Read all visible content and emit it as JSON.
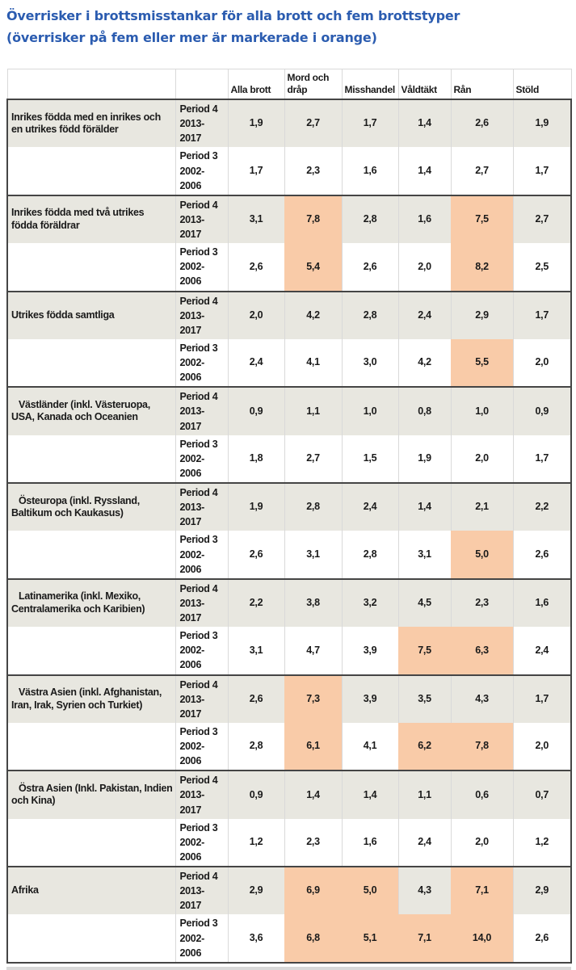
{
  "title": {
    "line1": "Överrisker i brottsmisstankar för alla brott och fem brottstyper",
    "line2": "(överrisker på fem eller mer är markerade i orange)"
  },
  "colors": {
    "title_blue": "#2B5CB0",
    "highlight_orange": "#F9CBA8",
    "row_shade_gray": "#E8E7E0",
    "group_border_dark": "#454545",
    "grid_border_light": "#D9D9D9",
    "text_ink": "#1A1A1A",
    "bottom_strip_gray": "#D9D9D9"
  },
  "table": {
    "column_headers": [
      "Alla brott",
      "Mord och dråp",
      "Misshandel",
      "Våldtäkt",
      "Rån",
      "Stöld"
    ],
    "highlight_threshold": 5,
    "groups": [
      {
        "label": "Inrikes födda med en inrikes och en utrikes född förälder",
        "indent": false,
        "rows": [
          {
            "period": "Period 4",
            "years": "2013-2017",
            "values": [
              "1,9",
              "2,7",
              "1,7",
              "1,4",
              "2,6",
              "1,9"
            ]
          },
          {
            "period": "Period 3",
            "years": "2002-2006",
            "values": [
              "1,7",
              "2,3",
              "1,6",
              "1,4",
              "2,7",
              "1,7"
            ]
          }
        ]
      },
      {
        "label": "Inrikes födda med två utrikes födda föräldrar",
        "indent": false,
        "rows": [
          {
            "period": "Period 4",
            "years": "2013-2017",
            "values": [
              "3,1",
              "7,8",
              "2,8",
              "1,6",
              "7,5",
              "2,7"
            ]
          },
          {
            "period": "Period 3",
            "years": "2002-2006",
            "values": [
              "2,6",
              "5,4",
              "2,6",
              "2,0",
              "8,2",
              "2,5"
            ]
          }
        ]
      },
      {
        "label": "Utrikes födda samtliga",
        "indent": false,
        "rows": [
          {
            "period": "Period 4",
            "years": "2013-2017",
            "values": [
              "2,0",
              "4,2",
              "2,8",
              "2,4",
              "2,9",
              "1,7"
            ]
          },
          {
            "period": "Period 3",
            "years": "2002-2006",
            "values": [
              "2,4",
              "4,1",
              "3,0",
              "4,2",
              "5,5",
              "2,0"
            ]
          }
        ]
      },
      {
        "label": "Västländer (inkl. Västeruopa, USA, Kanada och Oceanien",
        "indent": true,
        "rows": [
          {
            "period": "Period 4",
            "years": "2013-2017",
            "values": [
              "0,9",
              "1,1",
              "1,0",
              "0,8",
              "1,0",
              "0,9"
            ]
          },
          {
            "period": "Period 3",
            "years": "2002-2006",
            "values": [
              "1,8",
              "2,7",
              "1,5",
              "1,9",
              "2,0",
              "1,7"
            ]
          }
        ]
      },
      {
        "label": "Östeuropa (inkl. Ryssland, Baltikum och Kaukasus)",
        "indent": true,
        "rows": [
          {
            "period": "Period 4",
            "years": "2013-2017",
            "values": [
              "1,9",
              "2,8",
              "2,4",
              "1,4",
              "2,1",
              "2,2"
            ]
          },
          {
            "period": "Period 3",
            "years": "2002-2006",
            "values": [
              "2,6",
              "3,1",
              "2,8",
              "3,1",
              "5,0",
              "2,6"
            ]
          }
        ]
      },
      {
        "label": "Latinamerika (inkl. Mexiko, Centralamerika och Karibien)",
        "indent": true,
        "rows": [
          {
            "period": "Period 4",
            "years": "2013-2017",
            "values": [
              "2,2",
              "3,8",
              "3,2",
              "4,5",
              "2,3",
              "1,6"
            ]
          },
          {
            "period": "Period 3",
            "years": "2002-2006",
            "values": [
              "3,1",
              "4,7",
              "3,9",
              "7,5",
              "6,3",
              "2,4"
            ]
          }
        ]
      },
      {
        "label": "Västra Asien (inkl. Afghanistan, Iran, Irak, Syrien och Turkiet)",
        "indent": true,
        "rows": [
          {
            "period": "Period 4",
            "years": "2013-2017",
            "values": [
              "2,6",
              "7,3",
              "3,9",
              "3,5",
              "4,3",
              "1,7"
            ]
          },
          {
            "period": "Period 3",
            "years": "2002-2006",
            "values": [
              "2,8",
              "6,1",
              "4,1",
              "6,2",
              "7,8",
              "2,0"
            ]
          }
        ]
      },
      {
        "label": "Östra Asien (Inkl. Pakistan, Indien och Kina)",
        "indent": true,
        "rows": [
          {
            "period": "Period 4",
            "years": "2013-2017",
            "values": [
              "0,9",
              "1,4",
              "1,4",
              "1,1",
              "0,6",
              "0,7"
            ]
          },
          {
            "period": "Period 3",
            "years": "2002-2006",
            "values": [
              "1,2",
              "2,3",
              "1,6",
              "2,4",
              "2,0",
              "1,2"
            ]
          }
        ]
      },
      {
        "label": "Afrika",
        "indent": false,
        "rows": [
          {
            "period": "Period 4",
            "years": "2013-2017",
            "values": [
              "2,9",
              "6,9",
              "5,0",
              "4,3",
              "7,1",
              "2,9"
            ]
          },
          {
            "period": "Period 3",
            "years": "2002-2006",
            "values": [
              "3,6",
              "6,8",
              "5,1",
              "7,1",
              "14,0",
              "2,6"
            ]
          }
        ]
      }
    ]
  },
  "chart_data": {
    "type": "table",
    "title": "Överrisker i brottsmisstankar för alla brott och fem brottstyper (överrisker på fem eller mer är markerade i orange)",
    "columns": [
      "Alla brott",
      "Mord och dråp",
      "Misshandel",
      "Våldtäkt",
      "Rån",
      "Stöld"
    ],
    "highlight_rule": "cell value >= 5 is highlighted orange",
    "rows": [
      {
        "group": "Inrikes födda med en inrikes och en utrikes född förälder",
        "period": "Period 4 2013-2017",
        "values": [
          1.9,
          2.7,
          1.7,
          1.4,
          2.6,
          1.9
        ]
      },
      {
        "group": "Inrikes födda med en inrikes och en utrikes född förälder",
        "period": "Period 3 2002-2006",
        "values": [
          1.7,
          2.3,
          1.6,
          1.4,
          2.7,
          1.7
        ]
      },
      {
        "group": "Inrikes födda med två utrikes födda föräldrar",
        "period": "Period 4 2013-2017",
        "values": [
          3.1,
          7.8,
          2.8,
          1.6,
          7.5,
          2.7
        ]
      },
      {
        "group": "Inrikes födda med två utrikes födda föräldrar",
        "period": "Period 3 2002-2006",
        "values": [
          2.6,
          5.4,
          2.6,
          2.0,
          8.2,
          2.5
        ]
      },
      {
        "group": "Utrikes födda samtliga",
        "period": "Period 4 2013-2017",
        "values": [
          2.0,
          4.2,
          2.8,
          2.4,
          2.9,
          1.7
        ]
      },
      {
        "group": "Utrikes födda samtliga",
        "period": "Period 3 2002-2006",
        "values": [
          2.4,
          4.1,
          3.0,
          4.2,
          5.5,
          2.0
        ]
      },
      {
        "group": "Västländer (inkl. Västeruopa, USA, Kanada och Oceanien",
        "period": "Period 4 2013-2017",
        "values": [
          0.9,
          1.1,
          1.0,
          0.8,
          1.0,
          0.9
        ]
      },
      {
        "group": "Västländer (inkl. Västeruopa, USA, Kanada och Oceanien",
        "period": "Period 3 2002-2006",
        "values": [
          1.8,
          2.7,
          1.5,
          1.9,
          2.0,
          1.7
        ]
      },
      {
        "group": "Östeuropa (inkl. Ryssland, Baltikum och Kaukasus)",
        "period": "Period 4 2013-2017",
        "values": [
          1.9,
          2.8,
          2.4,
          1.4,
          2.1,
          2.2
        ]
      },
      {
        "group": "Östeuropa (inkl. Ryssland, Baltikum och Kaukasus)",
        "period": "Period 3 2002-2006",
        "values": [
          2.6,
          3.1,
          2.8,
          3.1,
          5.0,
          2.6
        ]
      },
      {
        "group": "Latinamerika (inkl. Mexiko, Centralamerika och Karibien)",
        "period": "Period 4 2013-2017",
        "values": [
          2.2,
          3.8,
          3.2,
          4.5,
          2.3,
          1.6
        ]
      },
      {
        "group": "Latinamerika (inkl. Mexiko, Centralamerika och Karibien)",
        "period": "Period 3 2002-2006",
        "values": [
          3.1,
          4.7,
          3.9,
          7.5,
          6.3,
          2.4
        ]
      },
      {
        "group": "Västra Asien (inkl. Afghanistan, Iran, Irak, Syrien och Turkiet)",
        "period": "Period 4 2013-2017",
        "values": [
          2.6,
          7.3,
          3.9,
          3.5,
          4.3,
          1.7
        ]
      },
      {
        "group": "Västra Asien (inkl. Afghanistan, Iran, Irak, Syrien och Turkiet)",
        "period": "Period 3 2002-2006",
        "values": [
          2.8,
          6.1,
          4.1,
          6.2,
          7.8,
          2.0
        ]
      },
      {
        "group": "Östra Asien (Inkl. Pakistan, Indien och Kina)",
        "period": "Period 4 2013-2017",
        "values": [
          0.9,
          1.4,
          1.4,
          1.1,
          0.6,
          0.7
        ]
      },
      {
        "group": "Östra Asien (Inkl. Pakistan, Indien och Kina)",
        "period": "Period 3 2002-2006",
        "values": [
          1.2,
          2.3,
          1.6,
          2.4,
          2.0,
          1.2
        ]
      },
      {
        "group": "Afrika",
        "period": "Period 4 2013-2017",
        "values": [
          2.9,
          6.9,
          5.0,
          4.3,
          7.1,
          2.9
        ]
      },
      {
        "group": "Afrika",
        "period": "Period 3 2002-2006",
        "values": [
          3.6,
          6.8,
          5.1,
          7.1,
          14.0,
          2.6
        ]
      }
    ]
  }
}
